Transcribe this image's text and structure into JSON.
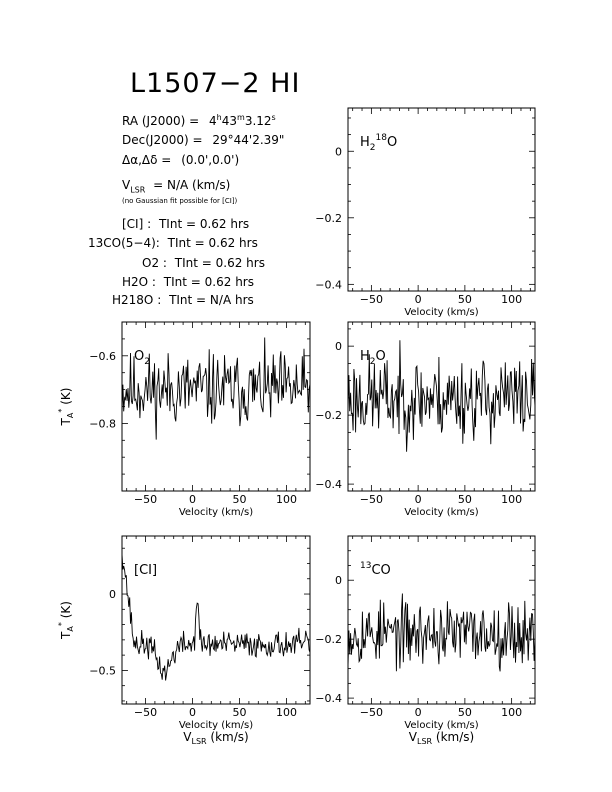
{
  "header": {
    "title": "L1507−2 HI",
    "ra_label": "RA (J2000) =",
    "ra_value": "4h43m3.12s",
    "dec_label": "Dec(J2000) =",
    "dec_value": "29°44'2.39\"",
    "offset_label": "Δα,Δδ =",
    "offset_value": "(0.0',0.0')",
    "vlsr_label": "VLSR",
    "vlsr_value": "= N/A  (km/s)",
    "note": "(no Gaussian fit possible for [CI])"
  },
  "integration_times": [
    {
      "line": "[CI] :",
      "tint": "TInt = 0.62 hrs"
    },
    {
      "line": "13CO(5−4):",
      "tint": "TInt = 0.62 hrs"
    },
    {
      "line": "O2 :",
      "tint": "TInt = 0.62 hrs"
    },
    {
      "line": "H2O :",
      "tint": "TInt = 0.62 hrs"
    },
    {
      "line": "H218O :",
      "tint": "TInt = N/A hrs"
    }
  ],
  "axis_text": {
    "velocity": "Velocity (km/s)",
    "vlsr": "VLSR (km/s)",
    "ta": "TA* (K)"
  },
  "chart_data": [
    {
      "id": "h218o",
      "type": "line",
      "label": "H218O",
      "x_range": [
        -75,
        125
      ],
      "ylim": [
        -0.42,
        0.13
      ],
      "xticks": [
        -50,
        0,
        50,
        100
      ],
      "yticks": [
        0,
        -0.2,
        -0.4
      ],
      "xlabel": "Velocity (km/s)",
      "ylabel": "",
      "series": [],
      "noise": 0,
      "seed": 0
    },
    {
      "id": "o2",
      "type": "line",
      "label": "O2",
      "x_range": [
        -75,
        125
      ],
      "ylim": [
        -1.0,
        -0.5
      ],
      "xticks": [
        -50,
        0,
        50,
        100
      ],
      "yticks": [
        -0.6,
        -0.8
      ],
      "xlabel": "Velocity (km/s)",
      "ylabel": "TA* (K)",
      "baseline": -0.7,
      "noise": 0.09,
      "seed": 11,
      "features": []
    },
    {
      "id": "h2o",
      "type": "line",
      "label": "H2O",
      "x_range": [
        -75,
        125
      ],
      "ylim": [
        -0.42,
        0.07
      ],
      "xticks": [
        -50,
        0,
        50,
        100
      ],
      "yticks": [
        0,
        -0.2,
        -0.4
      ],
      "xlabel": "Velocity (km/s)",
      "ylabel": "",
      "baseline": -0.15,
      "noise": 0.1,
      "seed": 23,
      "features": []
    },
    {
      "id": "ci",
      "type": "line",
      "label": "[CI]",
      "x_range": [
        -75,
        125
      ],
      "ylim": [
        -0.72,
        0.38
      ],
      "xticks": [
        -50,
        0,
        50,
        100
      ],
      "yticks": [
        0,
        -0.5
      ],
      "xlabel": "Velocity (km/s)",
      "ylabel": "TA* (K)",
      "xlabel2": "VLSR (km/s)",
      "baseline": -0.33,
      "noise": 0.07,
      "seed": 37,
      "features": [
        {
          "type": "edge",
          "x0": -75,
          "x1": -62,
          "y0": 0.3,
          "y1": -0.33
        },
        {
          "type": "dip",
          "center": -30,
          "width": 10,
          "depth": -0.18
        },
        {
          "type": "peak",
          "center": 5,
          "width": 2,
          "height": 0.32
        }
      ]
    },
    {
      "id": "co13",
      "type": "line",
      "label": "13CO",
      "x_range": [
        -75,
        125
      ],
      "ylim": [
        -0.42,
        0.15
      ],
      "xticks": [
        -50,
        0,
        50,
        100
      ],
      "yticks": [
        0,
        -0.2,
        -0.4
      ],
      "xlabel": "Velocity (km/s)",
      "ylabel": "",
      "xlabel2": "VLSR (km/s)",
      "baseline": -0.18,
      "noise": 0.09,
      "seed": 53,
      "features": []
    }
  ]
}
